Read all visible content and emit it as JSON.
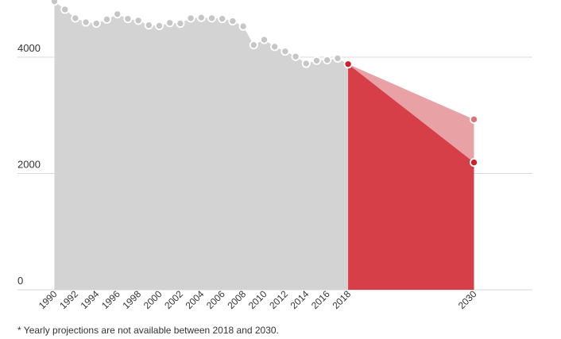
{
  "chart_data": {
    "type": "area",
    "title": "",
    "xlabel": "",
    "ylabel": "",
    "ylim": [
      0,
      5000
    ],
    "yticks": [
      0,
      2000,
      4000
    ],
    "xticks": [
      1990,
      1992,
      1994,
      1996,
      1998,
      2000,
      2002,
      2004,
      2006,
      2008,
      2010,
      2012,
      2014,
      2016,
      2018,
      2030
    ],
    "grid": true,
    "legend": "none",
    "series": [
      {
        "color": "#d3d3d3",
        "x": [
          1990,
          1991,
          1992,
          1993,
          1994,
          1995,
          1996,
          1997,
          1998,
          1999,
          2000,
          2001,
          2002,
          2003,
          2004,
          2005,
          2006,
          2007,
          2008,
          2009,
          2010,
          2011,
          2012,
          2013,
          2014,
          2015,
          2016,
          2017,
          2018
        ],
        "values": [
          4960,
          4820,
          4670,
          4600,
          4580,
          4650,
          4740,
          4660,
          4630,
          4550,
          4540,
          4590,
          4580,
          4670,
          4680,
          4670,
          4660,
          4620,
          4530,
          4210,
          4300,
          4180,
          4100,
          4010,
          3890,
          3940,
          3950,
          3980,
          3880
        ]
      },
      {
        "color": "#e8a2a6",
        "x": [
          2018,
          2030
        ],
        "values": [
          3880,
          2930
        ]
      },
      {
        "color": "#d63f48",
        "x": [
          2018,
          2030
        ],
        "values": [
          3880,
          2190
        ]
      }
    ]
  },
  "footnote": "* Yearly projections are not available between 2018 and 2030."
}
